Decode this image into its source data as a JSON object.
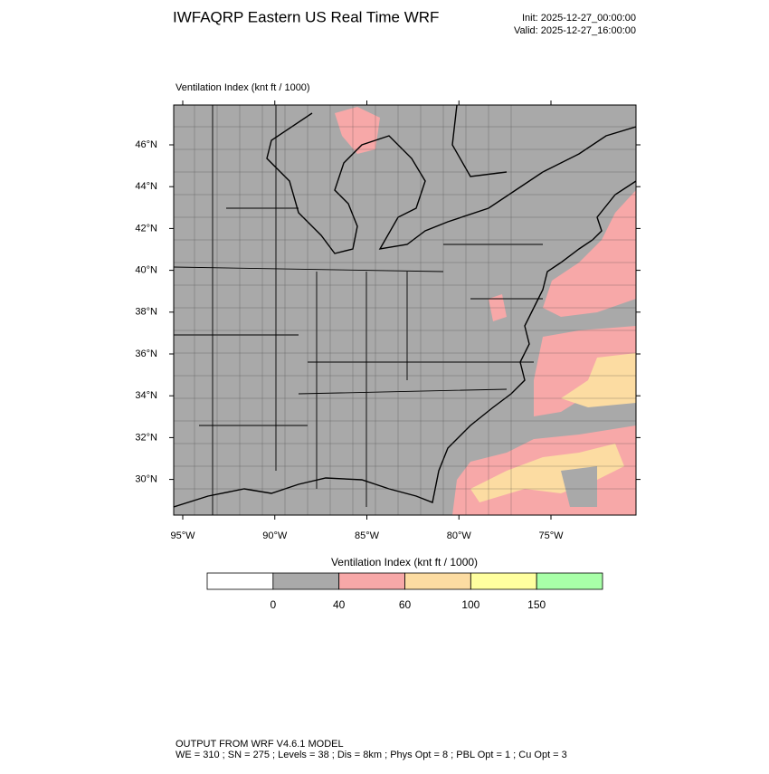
{
  "header": {
    "title": "IWFAQRP Eastern US Real Time WRF",
    "init": "Init: 2025-12-27_00:00:00",
    "valid": "Valid: 2025-12-27_16:00:00"
  },
  "map": {
    "label": "Ventilation Index   (knt ft / 1000)",
    "lat_ticks": [
      {
        "value": 46,
        "label": "46°N"
      },
      {
        "value": 44,
        "label": "44°N"
      },
      {
        "value": 42,
        "label": "42°N"
      },
      {
        "value": 40,
        "label": "40°N"
      },
      {
        "value": 38,
        "label": "38°N"
      },
      {
        "value": 36,
        "label": "36°N"
      },
      {
        "value": 34,
        "label": "34°N"
      },
      {
        "value": 32,
        "label": "32°N"
      },
      {
        "value": 30,
        "label": "30°N"
      }
    ],
    "lon_ticks": [
      {
        "value": -95,
        "label": "95°W"
      },
      {
        "value": -90,
        "label": "90°W"
      },
      {
        "value": -85,
        "label": "85°W"
      },
      {
        "value": -80,
        "label": "80°W"
      },
      {
        "value": -75,
        "label": "75°W"
      }
    ]
  },
  "colorbar": {
    "title": "Ventilation Index  (knt ft / 1000)",
    "colors": [
      "#ffffff",
      "#a9a9a9",
      "#f7a8a8",
      "#fcdca2",
      "#ffff9f",
      "#a8ffa8"
    ],
    "ticks": [
      0,
      40,
      60,
      100,
      150
    ]
  },
  "footer": {
    "line1": "OUTPUT FROM WRF V4.6.1 MODEL",
    "line2": "WE = 310 ; SN = 275 ; Levels = 38 ; Dis = 8km ; Phys Opt = 8 ; PBL Opt = 1 ; Cu Opt = 3"
  }
}
